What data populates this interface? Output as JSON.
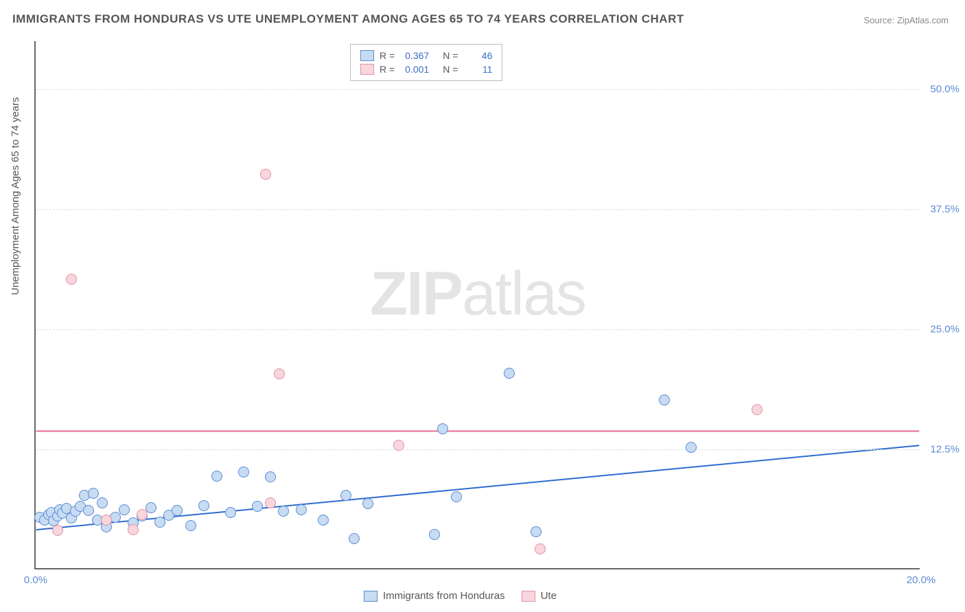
{
  "title": "IMMIGRANTS FROM HONDURAS VS UTE UNEMPLOYMENT AMONG AGES 65 TO 74 YEARS CORRELATION CHART",
  "source": "Source: ZipAtlas.com",
  "ylabel": "Unemployment Among Ages 65 to 74 years",
  "watermark_bold": "ZIP",
  "watermark_rest": "atlas",
  "chart": {
    "type": "scatter",
    "xlim": [
      0,
      20
    ],
    "ylim": [
      0,
      55
    ],
    "xticks": [
      {
        "v": 0,
        "label": "0.0%"
      },
      {
        "v": 20,
        "label": "20.0%"
      }
    ],
    "yticks": [
      {
        "v": 12.5,
        "label": "12.5%"
      },
      {
        "v": 25.0,
        "label": "25.0%"
      },
      {
        "v": 37.5,
        "label": "37.5%"
      },
      {
        "v": 50.0,
        "label": "50.0%"
      }
    ],
    "background_color": "#ffffff",
    "grid_color": "#dddddd",
    "series": [
      {
        "name": "Immigrants from Honduras",
        "fill": "#c7dbf2",
        "stroke": "#5b8bd4",
        "marker_radius": 8,
        "trend": {
          "x1": 0,
          "y1": 4.0,
          "x2": 20,
          "y2": 12.8,
          "color": "#2d6cd0",
          "width": 2
        },
        "points": [
          [
            0.1,
            5.3
          ],
          [
            0.2,
            5.0
          ],
          [
            0.3,
            5.6
          ],
          [
            0.35,
            5.8
          ],
          [
            0.4,
            4.9
          ],
          [
            0.5,
            5.4
          ],
          [
            0.55,
            6.1
          ],
          [
            0.6,
            5.7
          ],
          [
            0.7,
            6.2
          ],
          [
            0.8,
            5.2
          ],
          [
            0.9,
            5.9
          ],
          [
            1.0,
            6.4
          ],
          [
            1.1,
            7.6
          ],
          [
            1.2,
            6.0
          ],
          [
            1.3,
            7.8
          ],
          [
            1.4,
            5.0
          ],
          [
            1.5,
            6.8
          ],
          [
            1.6,
            4.3
          ],
          [
            1.8,
            5.3
          ],
          [
            2.0,
            6.1
          ],
          [
            2.2,
            4.7
          ],
          [
            2.4,
            5.4
          ],
          [
            2.6,
            6.3
          ],
          [
            2.8,
            4.8
          ],
          [
            3.0,
            5.5
          ],
          [
            3.2,
            6.0
          ],
          [
            3.5,
            4.4
          ],
          [
            3.8,
            6.5
          ],
          [
            4.1,
            9.6
          ],
          [
            4.4,
            5.8
          ],
          [
            4.7,
            10.0
          ],
          [
            5.0,
            6.4
          ],
          [
            5.3,
            9.5
          ],
          [
            5.6,
            5.9
          ],
          [
            6.0,
            6.1
          ],
          [
            6.5,
            5.0
          ],
          [
            7.0,
            7.6
          ],
          [
            7.2,
            3.1
          ],
          [
            7.5,
            6.7
          ],
          [
            9.0,
            3.5
          ],
          [
            9.2,
            14.5
          ],
          [
            9.5,
            7.4
          ],
          [
            10.7,
            20.3
          ],
          [
            11.3,
            3.8
          ],
          [
            14.2,
            17.5
          ],
          [
            14.8,
            12.6
          ]
        ]
      },
      {
        "name": "Ute",
        "fill": "#f7d6dd",
        "stroke": "#e38fa3",
        "marker_radius": 8,
        "trend": {
          "x1": 0,
          "y1": 14.3,
          "x2": 20,
          "y2": 14.3,
          "color": "#e86b8c",
          "width": 2
        },
        "points": [
          [
            0.5,
            3.9
          ],
          [
            0.8,
            30.1
          ],
          [
            1.6,
            5.0
          ],
          [
            2.2,
            4.0
          ],
          [
            2.4,
            5.6
          ],
          [
            5.2,
            41.0
          ],
          [
            5.3,
            6.8
          ],
          [
            5.5,
            20.2
          ],
          [
            8.2,
            12.8
          ],
          [
            11.4,
            2.0
          ],
          [
            16.3,
            16.5
          ]
        ]
      }
    ],
    "legend_top": {
      "rows": [
        {
          "swatch_fill": "#c7dbf2",
          "swatch_stroke": "#5b8bd4",
          "r_label": "R =",
          "r": "0.367",
          "n_label": "N =",
          "n": "46"
        },
        {
          "swatch_fill": "#f7d6dd",
          "swatch_stroke": "#e38fa3",
          "r_label": "R =",
          "r": "0.001",
          "n_label": "N =",
          "n": "11"
        }
      ]
    },
    "legend_bottom": [
      {
        "swatch_fill": "#c7dbf2",
        "swatch_stroke": "#5b8bd4",
        "label": "Immigrants from Honduras"
      },
      {
        "swatch_fill": "#f7d6dd",
        "swatch_stroke": "#e38fa3",
        "label": "Ute"
      }
    ]
  }
}
